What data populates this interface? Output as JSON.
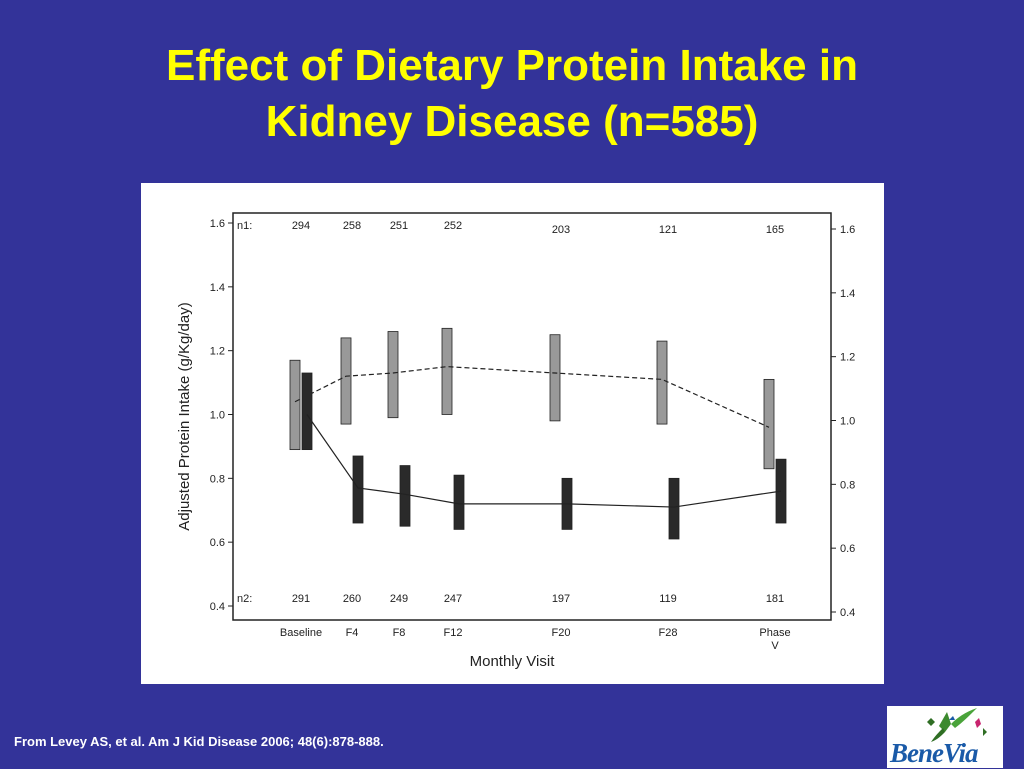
{
  "slide": {
    "title_line1": "Effect of Dietary Protein Intake in",
    "title_line2": "Kidney Disease (n=585)",
    "citation": "From Levey AS, et al. Am J Kid Disease 2006;  48(6):878-888.",
    "logo_text": "BeneVia"
  },
  "colors": {
    "background": "#333399",
    "title": "#ffff00",
    "citation": "#ffffff",
    "group1_bar": "#999999",
    "group2_bar": "#2a2a2a"
  },
  "chart_data": {
    "type": "line",
    "ylabel": "Adjusted Protein Intake (g/Kg/day)",
    "xlabel": "Monthly Visit",
    "ylim": [
      0.4,
      1.6
    ],
    "y_ticks": [
      "0.4",
      "0.6",
      "0.8",
      "1.0",
      "1.2",
      "1.4",
      "1.6"
    ],
    "x": [
      "Baseline",
      "F4",
      "F8",
      "F12",
      "F20",
      "F28",
      "Phase V"
    ],
    "x_labels": [
      [
        "Baseline"
      ],
      [
        "F4"
      ],
      [
        "F8"
      ],
      [
        "F12"
      ],
      [
        "F20"
      ],
      [
        "F28"
      ],
      [
        "Phase",
        "V"
      ]
    ],
    "x_positions": [
      0,
      4,
      8,
      12,
      20,
      28,
      34.5
    ],
    "grid": false,
    "series": [
      {
        "row_label": "n1:",
        "line_style": "dashed",
        "values": [
          1.04,
          1.12,
          1.13,
          1.15,
          1.13,
          1.11,
          0.96
        ],
        "bar_low": [
          0.89,
          0.97,
          0.99,
          1.0,
          0.98,
          0.97,
          0.83
        ],
        "bar_high": [
          1.17,
          1.24,
          1.26,
          1.27,
          1.25,
          1.23,
          1.11
        ],
        "n": [
          "294",
          "258",
          "251",
          "252",
          "203",
          "121",
          "165"
        ]
      },
      {
        "row_label": "n2:",
        "line_style": "solid",
        "values": [
          1.0,
          0.77,
          0.75,
          0.72,
          0.72,
          0.71,
          0.76
        ],
        "bar_low": [
          0.89,
          0.66,
          0.65,
          0.64,
          0.64,
          0.61,
          0.66
        ],
        "bar_high": [
          1.13,
          0.87,
          0.84,
          0.81,
          0.8,
          0.8,
          0.86
        ],
        "n": [
          "291",
          "260",
          "249",
          "247",
          "197",
          "119",
          "181"
        ]
      }
    ]
  }
}
